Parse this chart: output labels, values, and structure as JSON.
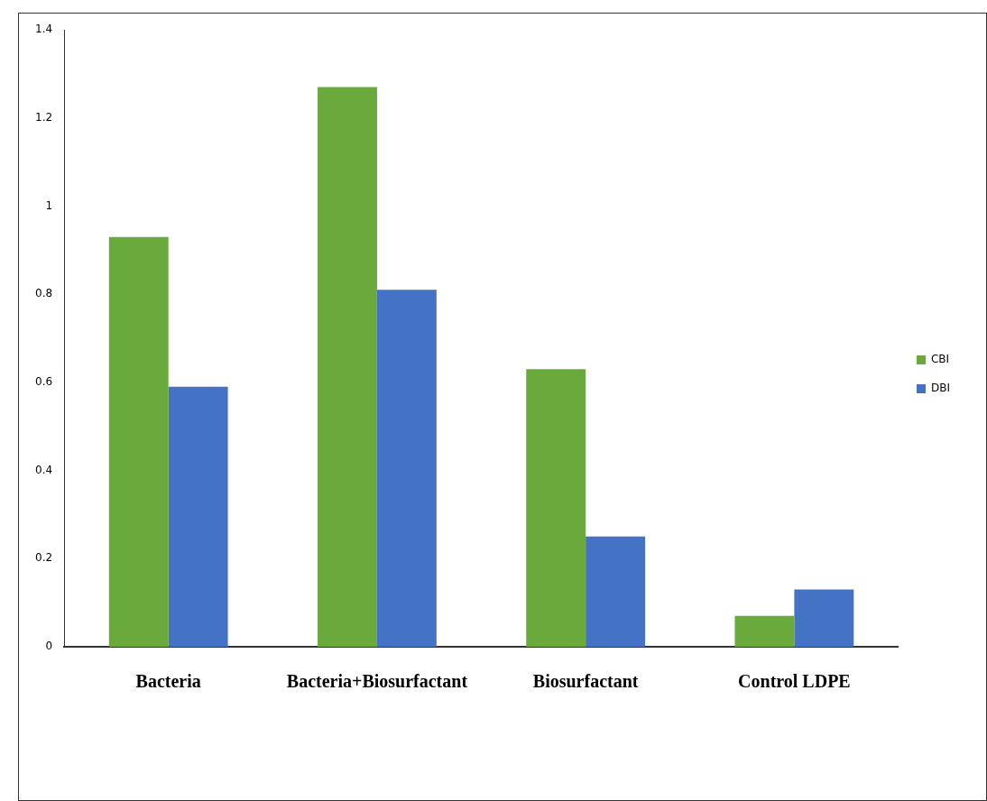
{
  "chart_data": {
    "type": "bar",
    "categories": [
      "Bacteria",
      "Bacteria+Biosurfactant",
      "Biosurfactant",
      "Control LDPE"
    ],
    "series": [
      {
        "name": "CBI",
        "color": "#6aaa3c",
        "values": [
          0.93,
          1.27,
          0.63,
          0.07
        ]
      },
      {
        "name": "DBI",
        "color": "#4472c4",
        "values": [
          0.59,
          0.81,
          0.25,
          0.13
        ]
      }
    ],
    "ylim": [
      0,
      1.4
    ],
    "yticks": [
      0,
      0.2,
      0.4,
      0.6,
      0.8,
      1,
      1.2,
      1.4
    ],
    "grid": false,
    "legend": "right"
  }
}
